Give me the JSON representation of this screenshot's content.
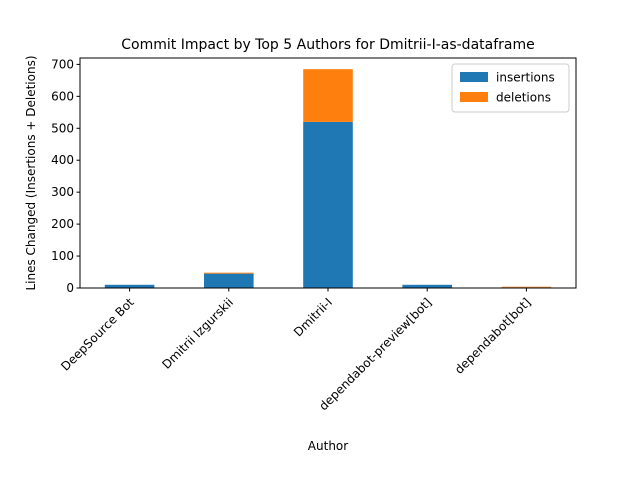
{
  "chart_data": {
    "type": "bar",
    "stacked": true,
    "title": "Commit Impact by Top 5 Authors for Dmitrii-I-as-dataframe",
    "xlabel": "Author",
    "ylabel": "Lines Changed (Insertions + Deletions)",
    "categories": [
      "DeepSource Bot",
      "Dmitrii Izgurskii",
      "Dmitrii-I",
      "dependabot-preview[bot]",
      "dependabot[bot]"
    ],
    "series": [
      {
        "name": "insertions",
        "color": "#1f77b4",
        "values": [
          10,
          45,
          520,
          10,
          2
        ]
      },
      {
        "name": "deletions",
        "color": "#ff7f0e",
        "values": [
          0,
          3,
          165,
          0,
          2
        ]
      }
    ],
    "ylim": [
      0,
      720
    ],
    "yticks": [
      0,
      100,
      200,
      300,
      400,
      500,
      600,
      700
    ],
    "grid": false,
    "legend_position": "top-right"
  }
}
